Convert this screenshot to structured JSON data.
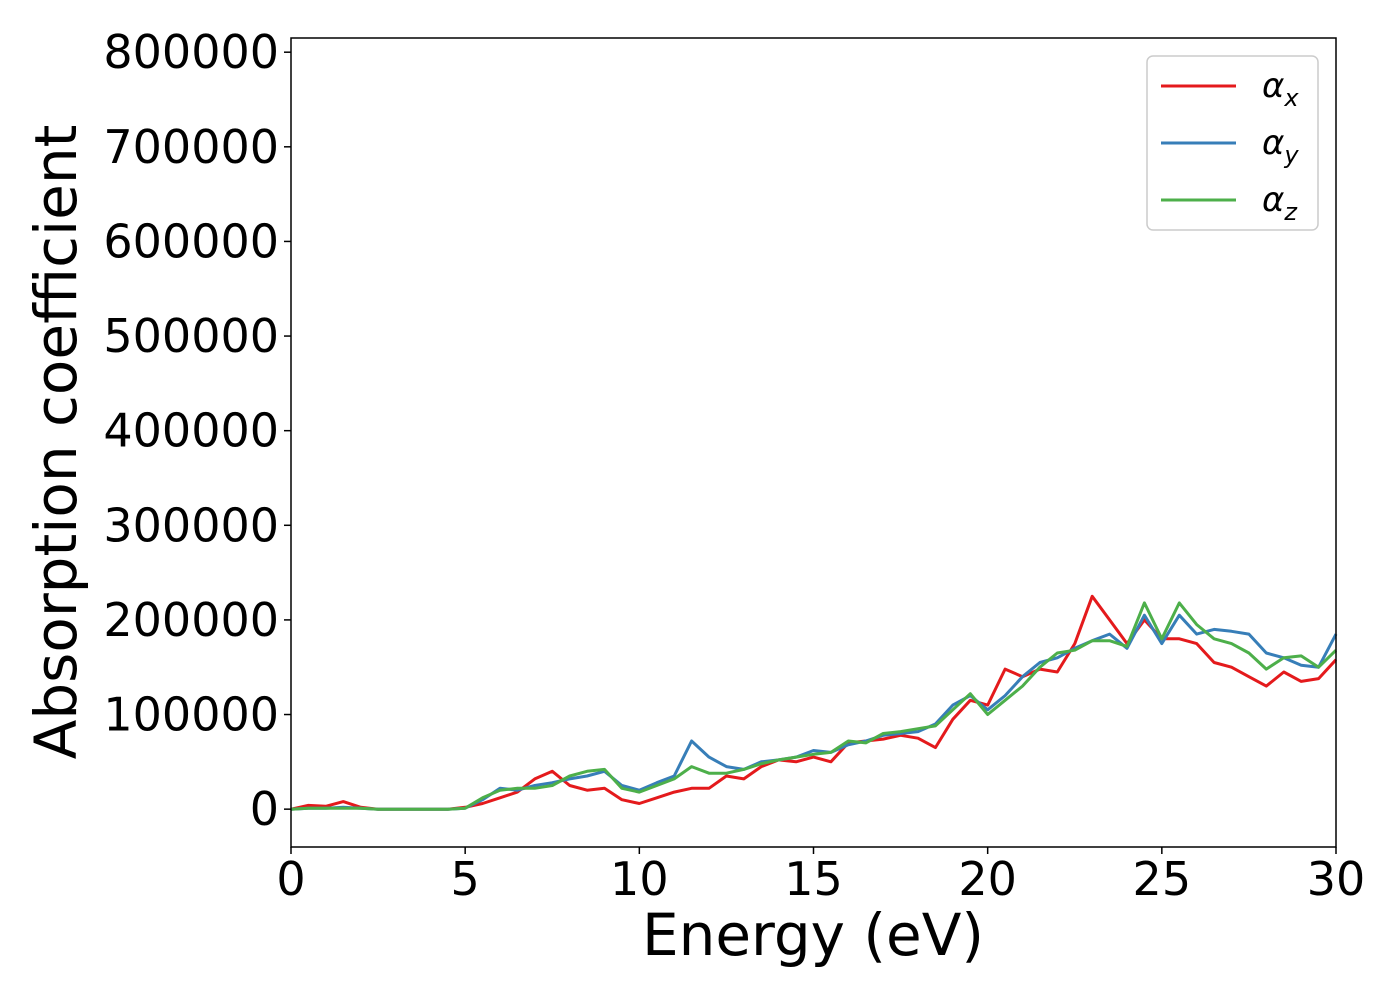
{
  "chart_data": {
    "type": "line",
    "title": "",
    "xlabel": "Energy (eV)",
    "ylabel": "Absorption coefficient",
    "xlim": [
      0,
      30
    ],
    "ylim": [
      -40000,
      815000
    ],
    "xticks": [
      0,
      5,
      10,
      15,
      20,
      25,
      30
    ],
    "yticks": [
      0,
      100000,
      200000,
      300000,
      400000,
      500000,
      600000,
      700000,
      800000
    ],
    "grid": false,
    "legend_position": "top-right",
    "x": [
      0,
      0.5,
      1,
      1.5,
      2,
      2.5,
      3,
      3.5,
      4,
      4.5,
      5,
      5.5,
      6,
      6.5,
      7,
      7.5,
      8,
      8.5,
      9,
      9.5,
      10,
      10.5,
      11,
      11.5,
      12,
      12.5,
      13,
      13.5,
      14,
      14.5,
      15,
      15.5,
      16,
      16.5,
      17,
      17.5,
      18,
      18.5,
      19,
      19.5,
      20,
      20.5,
      21,
      21.5,
      22,
      22.5,
      23,
      23.5,
      24,
      24.5,
      25,
      25.5,
      26,
      26.5,
      27,
      27.5,
      28,
      28.5,
      29,
      29.5,
      30
    ],
    "series": [
      {
        "name": "α",
        "subscript": "x",
        "color": "#e41a1c",
        "values": [
          0,
          4000,
          3000,
          8000,
          2000,
          0,
          0,
          0,
          0,
          0,
          2000,
          6000,
          12000,
          18000,
          32000,
          40000,
          25000,
          20000,
          22000,
          10000,
          6000,
          12000,
          18000,
          22000,
          22000,
          35000,
          32000,
          45000,
          52000,
          50000,
          55000,
          50000,
          70000,
          72000,
          74000,
          78000,
          75000,
          65000,
          95000,
          115000,
          110000,
          148000,
          140000,
          148000,
          145000,
          175000,
          225000,
          200000,
          175000,
          200000,
          180000,
          180000,
          175000,
          155000,
          150000,
          140000,
          130000,
          145000,
          135000,
          138000,
          158000
        ]
      },
      {
        "name": "α",
        "subscript": "y",
        "color": "#377eb8",
        "values": [
          0,
          1000,
          1000,
          2000,
          1000,
          0,
          0,
          0,
          0,
          0,
          1000,
          10000,
          22000,
          20000,
          25000,
          28000,
          32000,
          35000,
          40000,
          25000,
          20000,
          28000,
          35000,
          72000,
          55000,
          45000,
          42000,
          50000,
          52000,
          55000,
          62000,
          60000,
          68000,
          72000,
          78000,
          80000,
          82000,
          90000,
          110000,
          120000,
          105000,
          120000,
          140000,
          155000,
          160000,
          170000,
          178000,
          185000,
          170000,
          205000,
          175000,
          205000,
          185000,
          190000,
          188000,
          185000,
          165000,
          160000,
          152000,
          150000,
          185000
        ]
      },
      {
        "name": "α",
        "subscript": "z",
        "color": "#4daf4a",
        "values": [
          0,
          1000,
          1000,
          1000,
          1000,
          0,
          0,
          0,
          0,
          0,
          1000,
          12000,
          20000,
          22000,
          22000,
          25000,
          35000,
          40000,
          42000,
          22000,
          18000,
          25000,
          32000,
          45000,
          38000,
          38000,
          42000,
          48000,
          52000,
          55000,
          58000,
          60000,
          72000,
          70000,
          80000,
          82000,
          85000,
          88000,
          105000,
          122000,
          100000,
          115000,
          130000,
          150000,
          165000,
          168000,
          178000,
          178000,
          172000,
          218000,
          180000,
          218000,
          195000,
          180000,
          175000,
          165000,
          148000,
          160000,
          162000,
          150000,
          168000
        ]
      }
    ]
  }
}
